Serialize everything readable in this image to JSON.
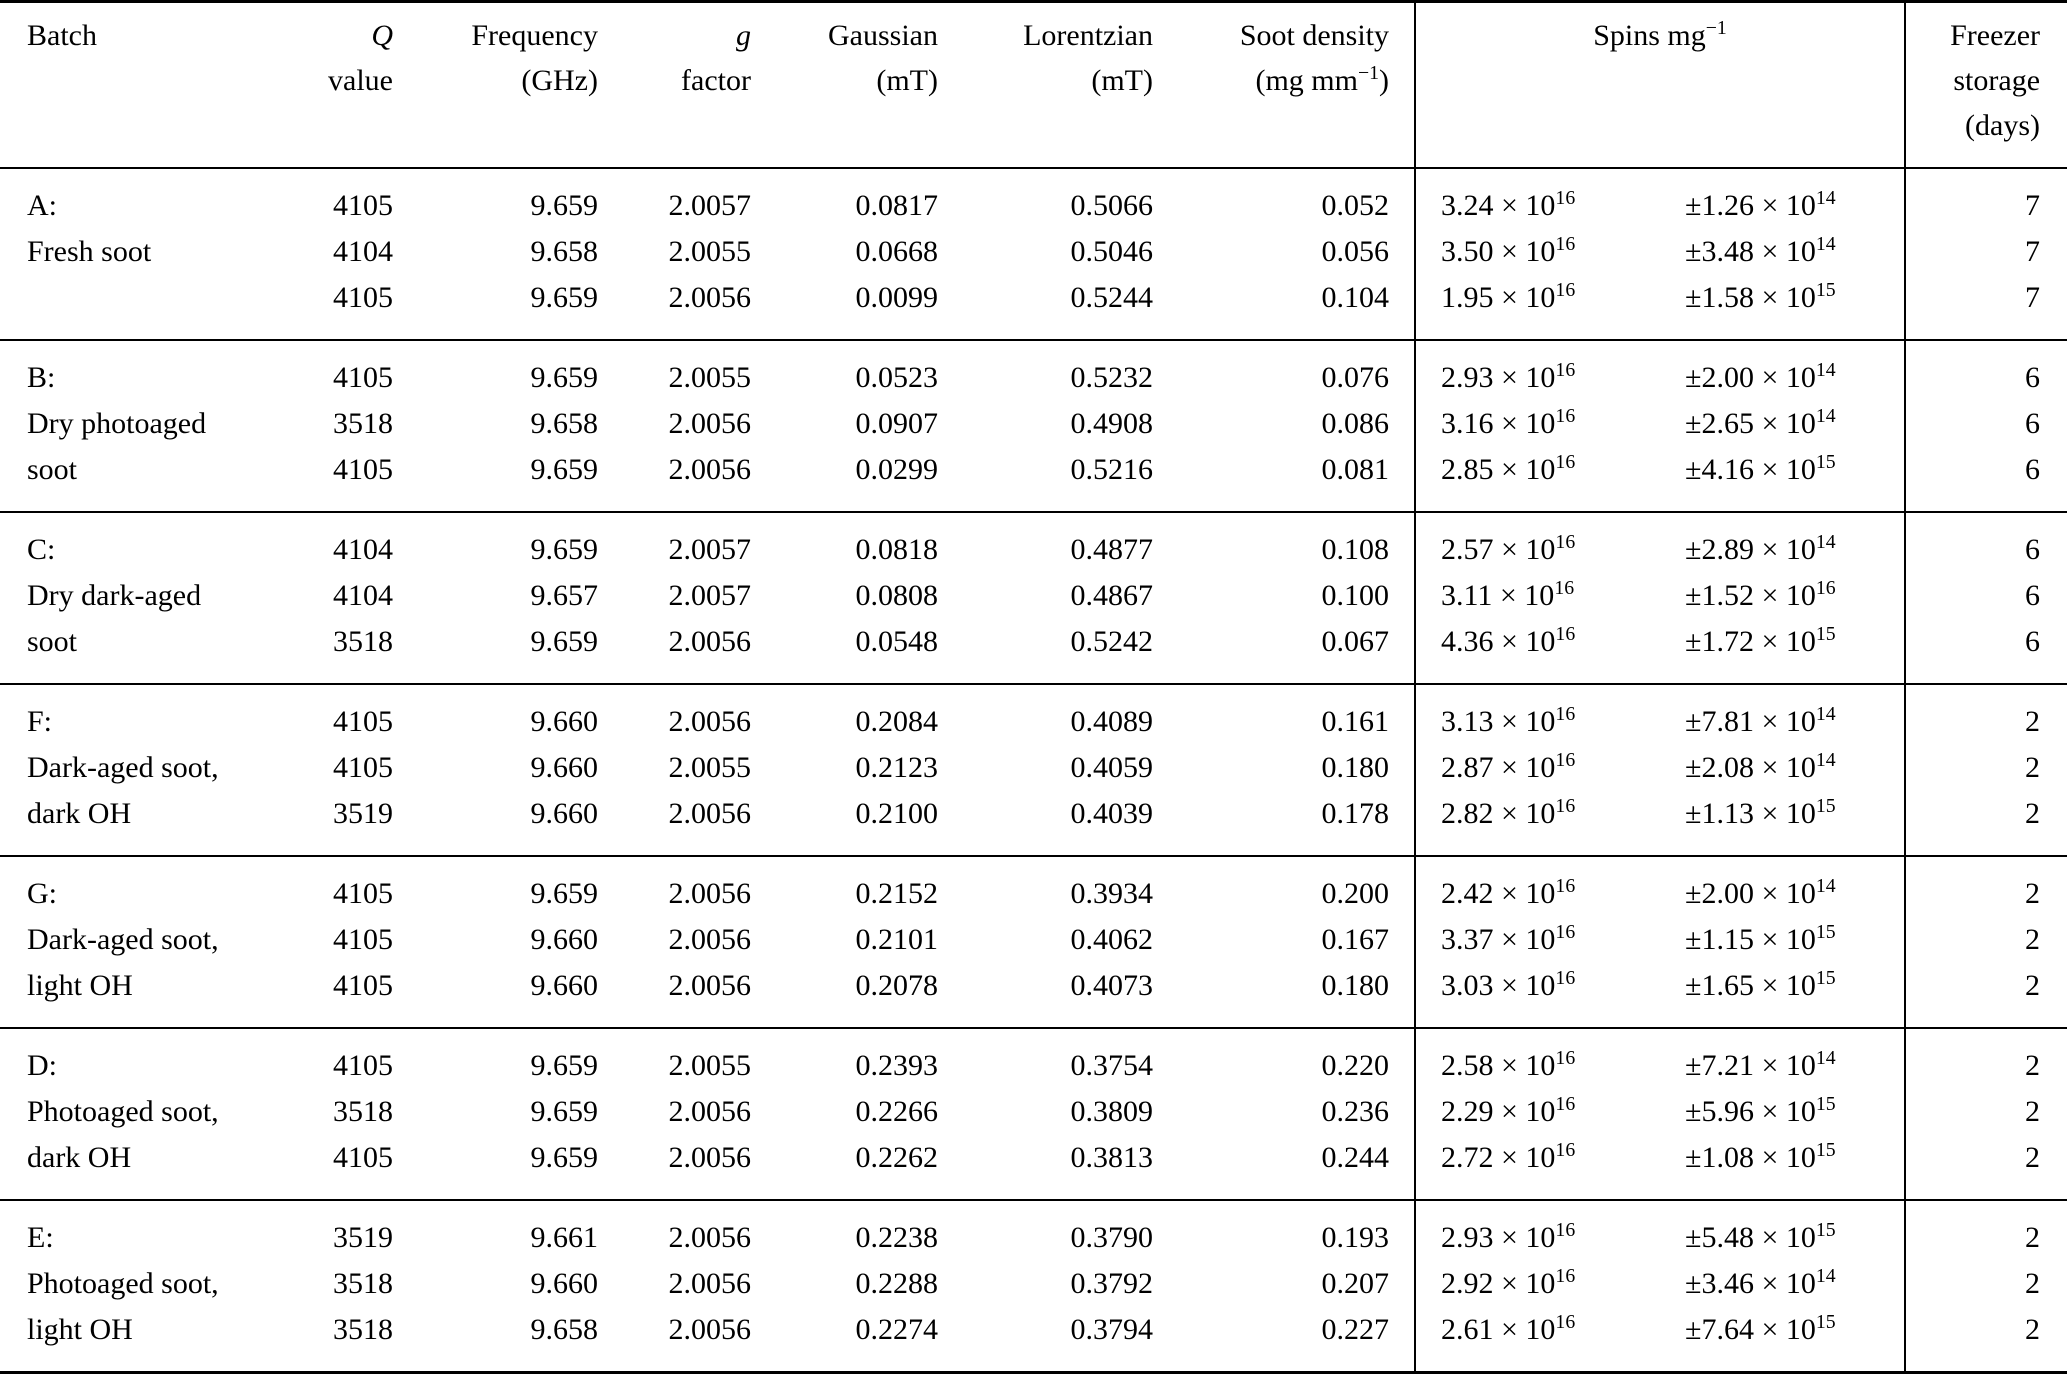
{
  "colors": {
    "background": "#ffffff",
    "text": "#000000",
    "rule": "#000000"
  },
  "header": {
    "batch": "Batch",
    "q": {
      "line1": "Q",
      "line2": "value"
    },
    "frequency": {
      "line1": "Frequency",
      "line2": "(GHz)"
    },
    "g": {
      "line1": "g",
      "line2": "factor"
    },
    "gaussian": {
      "line1": "Gaussian",
      "line2": "(mT)"
    },
    "lorentzian": {
      "line1": "Lorentzian",
      "line2": "(mT)"
    },
    "soot_density": {
      "line1": "Soot density",
      "line2_pre": "(mg mm",
      "line2_sup": "−1",
      "line2_post": ")"
    },
    "spins": {
      "pre": "Spins mg",
      "sup": "−1"
    },
    "freezer": {
      "line1": "Freezer",
      "line2": "storage",
      "line3": "(days)"
    }
  },
  "groups": [
    {
      "rows": [
        {
          "batch": "A:",
          "q": "4105",
          "frequency": "9.659",
          "g_factor": "2.0057",
          "gaussian": "0.0817",
          "lorentzian": "0.5066",
          "soot_density": "0.052",
          "spins_base": "3.24 × 10",
          "spins_exp": "16",
          "error_base": "±1.26 × 10",
          "error_exp": "14",
          "freezer_days": "7"
        },
        {
          "batch": "Fresh soot",
          "q": "4104",
          "frequency": "9.658",
          "g_factor": "2.0055",
          "gaussian": "0.0668",
          "lorentzian": "0.5046",
          "soot_density": "0.056",
          "spins_base": "3.50 × 10",
          "spins_exp": "16",
          "error_base": "±3.48 × 10",
          "error_exp": "14",
          "freezer_days": "7"
        },
        {
          "batch": "",
          "q": "4105",
          "frequency": "9.659",
          "g_factor": "2.0056",
          "gaussian": "0.0099",
          "lorentzian": "0.5244",
          "soot_density": "0.104",
          "spins_base": "1.95 × 10",
          "spins_exp": "16",
          "error_base": "±1.58 × 10",
          "error_exp": "15",
          "freezer_days": "7"
        }
      ]
    },
    {
      "rows": [
        {
          "batch": "B:",
          "q": "4105",
          "frequency": "9.659",
          "g_factor": "2.0055",
          "gaussian": "0.0523",
          "lorentzian": "0.5232",
          "soot_density": "0.076",
          "spins_base": "2.93 × 10",
          "spins_exp": "16",
          "error_base": "±2.00 × 10",
          "error_exp": "14",
          "freezer_days": "6"
        },
        {
          "batch": "Dry photoaged",
          "q": "3518",
          "frequency": "9.658",
          "g_factor": "2.0056",
          "gaussian": "0.0907",
          "lorentzian": "0.4908",
          "soot_density": "0.086",
          "spins_base": "3.16 × 10",
          "spins_exp": "16",
          "error_base": "±2.65 × 10",
          "error_exp": "14",
          "freezer_days": "6"
        },
        {
          "batch": "soot",
          "q": "4105",
          "frequency": "9.659",
          "g_factor": "2.0056",
          "gaussian": "0.0299",
          "lorentzian": "0.5216",
          "soot_density": "0.081",
          "spins_base": "2.85 × 10",
          "spins_exp": "16",
          "error_base": "±4.16 × 10",
          "error_exp": "15",
          "freezer_days": "6"
        }
      ]
    },
    {
      "rows": [
        {
          "batch": "C:",
          "q": "4104",
          "frequency": "9.659",
          "g_factor": "2.0057",
          "gaussian": "0.0818",
          "lorentzian": "0.4877",
          "soot_density": "0.108",
          "spins_base": "2.57 × 10",
          "spins_exp": "16",
          "error_base": "±2.89 × 10",
          "error_exp": "14",
          "freezer_days": "6"
        },
        {
          "batch": "Dry dark-aged",
          "q": "4104",
          "frequency": "9.657",
          "g_factor": "2.0057",
          "gaussian": "0.0808",
          "lorentzian": "0.4867",
          "soot_density": "0.100",
          "spins_base": "3.11 × 10",
          "spins_exp": "16",
          "error_base": "±1.52 × 10",
          "error_exp": "16",
          "freezer_days": "6"
        },
        {
          "batch": "soot",
          "q": "3518",
          "frequency": "9.659",
          "g_factor": "2.0056",
          "gaussian": "0.0548",
          "lorentzian": "0.5242",
          "soot_density": "0.067",
          "spins_base": "4.36 × 10",
          "spins_exp": "16",
          "error_base": "±1.72 × 10",
          "error_exp": "15",
          "freezer_days": "6"
        }
      ]
    },
    {
      "rows": [
        {
          "batch": "F:",
          "q": "4105",
          "frequency": "9.660",
          "g_factor": "2.0056",
          "gaussian": "0.2084",
          "lorentzian": "0.4089",
          "soot_density": "0.161",
          "spins_base": "3.13 × 10",
          "spins_exp": "16",
          "error_base": "±7.81 × 10",
          "error_exp": "14",
          "freezer_days": "2"
        },
        {
          "batch": "Dark-aged soot,",
          "q": "4105",
          "frequency": "9.660",
          "g_factor": "2.0055",
          "gaussian": "0.2123",
          "lorentzian": "0.4059",
          "soot_density": "0.180",
          "spins_base": "2.87 × 10",
          "spins_exp": "16",
          "error_base": "±2.08 × 10",
          "error_exp": "14",
          "freezer_days": "2"
        },
        {
          "batch": "dark OH",
          "q": "3519",
          "frequency": "9.660",
          "g_factor": "2.0056",
          "gaussian": "0.2100",
          "lorentzian": "0.4039",
          "soot_density": "0.178",
          "spins_base": "2.82 × 10",
          "spins_exp": "16",
          "error_base": "±1.13 × 10",
          "error_exp": "15",
          "freezer_days": "2"
        }
      ]
    },
    {
      "rows": [
        {
          "batch": "G:",
          "q": "4105",
          "frequency": "9.659",
          "g_factor": "2.0056",
          "gaussian": "0.2152",
          "lorentzian": "0.3934",
          "soot_density": "0.200",
          "spins_base": "2.42 × 10",
          "spins_exp": "16",
          "error_base": "±2.00 × 10",
          "error_exp": "14",
          "freezer_days": "2"
        },
        {
          "batch": "Dark-aged soot,",
          "q": "4105",
          "frequency": "9.660",
          "g_factor": "2.0056",
          "gaussian": "0.2101",
          "lorentzian": "0.4062",
          "soot_density": "0.167",
          "spins_base": "3.37 × 10",
          "spins_exp": "16",
          "error_base": "±1.15 × 10",
          "error_exp": "15",
          "freezer_days": "2"
        },
        {
          "batch": "light OH",
          "q": "4105",
          "frequency": "9.660",
          "g_factor": "2.0056",
          "gaussian": "0.2078",
          "lorentzian": "0.4073",
          "soot_density": "0.180",
          "spins_base": "3.03 × 10",
          "spins_exp": "16",
          "error_base": "±1.65 × 10",
          "error_exp": "15",
          "freezer_days": "2"
        }
      ]
    },
    {
      "rows": [
        {
          "batch": "D:",
          "q": "4105",
          "frequency": "9.659",
          "g_factor": "2.0055",
          "gaussian": "0.2393",
          "lorentzian": "0.3754",
          "soot_density": "0.220",
          "spins_base": "2.58 × 10",
          "spins_exp": "16",
          "error_base": "±7.21 × 10",
          "error_exp": "14",
          "freezer_days": "2"
        },
        {
          "batch": "Photoaged soot,",
          "q": "3518",
          "frequency": "9.659",
          "g_factor": "2.0056",
          "gaussian": "0.2266",
          "lorentzian": "0.3809",
          "soot_density": "0.236",
          "spins_base": "2.29 × 10",
          "spins_exp": "16",
          "error_base": "±5.96 × 10",
          "error_exp": "15",
          "freezer_days": "2"
        },
        {
          "batch": "dark OH",
          "q": "4105",
          "frequency": "9.659",
          "g_factor": "2.0056",
          "gaussian": "0.2262",
          "lorentzian": "0.3813",
          "soot_density": "0.244",
          "spins_base": "2.72 × 10",
          "spins_exp": "16",
          "error_base": "±1.08 × 10",
          "error_exp": "15",
          "freezer_days": "2"
        }
      ]
    },
    {
      "rows": [
        {
          "batch": "E:",
          "q": "3519",
          "frequency": "9.661",
          "g_factor": "2.0056",
          "gaussian": "0.2238",
          "lorentzian": "0.3790",
          "soot_density": "0.193",
          "spins_base": "2.93 × 10",
          "spins_exp": "16",
          "error_base": "±5.48 × 10",
          "error_exp": "15",
          "freezer_days": "2"
        },
        {
          "batch": "Photoaged soot,",
          "q": "3518",
          "frequency": "9.660",
          "g_factor": "2.0056",
          "gaussian": "0.2288",
          "lorentzian": "0.3792",
          "soot_density": "0.207",
          "spins_base": "2.92 × 10",
          "spins_exp": "16",
          "error_base": "±3.46 × 10",
          "error_exp": "14",
          "freezer_days": "2"
        },
        {
          "batch": "light OH",
          "q": "3518",
          "frequency": "9.658",
          "g_factor": "2.0056",
          "gaussian": "0.2274",
          "lorentzian": "0.3794",
          "soot_density": "0.227",
          "spins_base": "2.61 × 10",
          "spins_exp": "16",
          "error_base": "±7.64 × 10",
          "error_exp": "15",
          "freezer_days": "2"
        }
      ]
    }
  ]
}
